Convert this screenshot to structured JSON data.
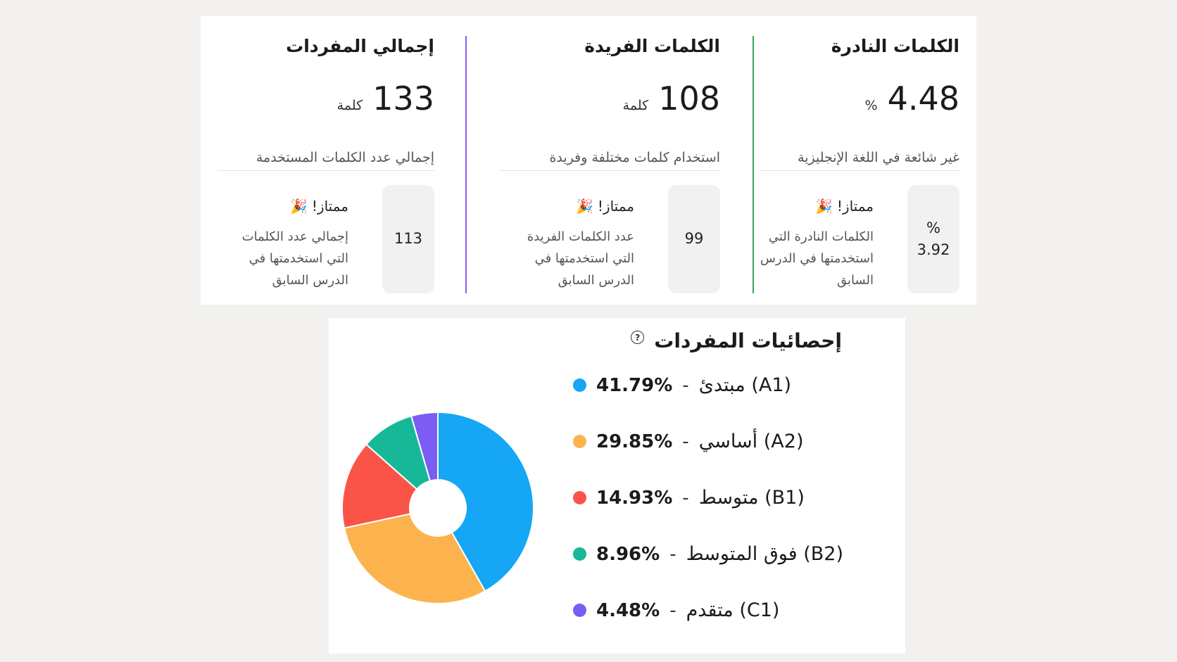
{
  "stats": [
    {
      "title": "الكلمات النادرة",
      "value": "4.48",
      "unit": "%",
      "description": "غير شائعة في اللغة الإنجليزية",
      "prev_value_top": "%",
      "prev_value": "3.92",
      "excellent": "ممتاز!",
      "prev_description": "الكلمات النادرة التي استخدمتها في الدرس السابق",
      "accent": "#2fa84f"
    },
    {
      "title": "الكلمات الفريدة",
      "value": "108",
      "unit": "كلمة",
      "description": "استخدام كلمات مختلفة وفريدة",
      "prev_value_top": "",
      "prev_value": "99",
      "excellent": "ممتاز!",
      "prev_description": "عدد الكلمات الفريدة التي استخدمتها في الدرس السابق",
      "accent": "#8b5cf6"
    },
    {
      "title": "إجمالي المفردات",
      "value": "133",
      "unit": "كلمة",
      "description": "إجمالي عدد الكلمات المستخدمة",
      "prev_value_top": "",
      "prev_value": "113",
      "excellent": "ممتاز!",
      "prev_description": "إجمالي عدد الكلمات التي استخدمتها في الدرس السابق"
    }
  ],
  "vocab_chart": {
    "title": "إحصائيات المفردات",
    "help_icon": "question-circle-icon",
    "party_icon": "party-popper-icon"
  },
  "chart_data": {
    "type": "pie",
    "style": "donut",
    "categories": [
      "(A1) مبتدئ",
      "(A2) أساسي",
      "(B1) متوسط",
      "(B2) فوق المتوسط",
      "(C1) متقدم"
    ],
    "values": [
      41.79,
      29.85,
      14.93,
      8.96,
      4.48
    ],
    "labels_pct": [
      "41.79%",
      "29.85%",
      "14.93%",
      "8.96%",
      "4.48%"
    ],
    "colors": [
      "#15a6f5",
      "#fdb34d",
      "#fa5448",
      "#17b897",
      "#7b5cf5"
    ],
    "legend": "right"
  }
}
